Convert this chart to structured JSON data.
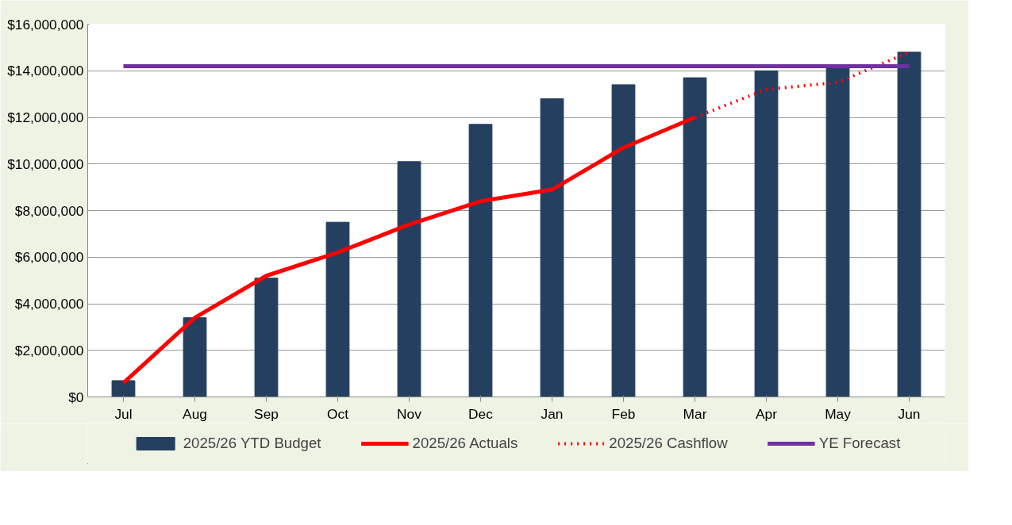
{
  "chart_data": {
    "type": "bar",
    "categories": [
      "Jul",
      "Aug",
      "Sep",
      "Oct",
      "Nov",
      "Dec",
      "Jan",
      "Feb",
      "Mar",
      "Apr",
      "May",
      "Jun"
    ],
    "ylim": [
      0,
      16000000
    ],
    "yticks": [
      {
        "value": 0,
        "label": "$0"
      },
      {
        "value": 2000000,
        "label": "$2,000,000"
      },
      {
        "value": 4000000,
        "label": "$4,000,000"
      },
      {
        "value": 6000000,
        "label": "$6,000,000"
      },
      {
        "value": 8000000,
        "label": "$8,000,000"
      },
      {
        "value": 10000000,
        "label": "$10,000,000"
      },
      {
        "value": 12000000,
        "label": "$12,000,000"
      },
      {
        "value": 14000000,
        "label": "$14,000,000"
      },
      {
        "value": 16000000,
        "label": "$16,000,000"
      }
    ],
    "grid": "y",
    "legend": "bottom",
    "marker": "none",
    "series": [
      {
        "name": "2025/26 YTD Budget",
        "color": "#243f60",
        "values": [
          700000,
          3400000,
          5100000,
          7500000,
          10100000,
          11700000,
          12800000,
          13400000,
          13700000,
          14000000,
          14200000,
          14800000
        ]
      },
      {
        "name": "2025/26 Actuals",
        "type": "line",
        "line_style": "solid",
        "color": "#ff0000",
        "values": [
          600000,
          3400000,
          5200000,
          6200000,
          7400000,
          8400000,
          8900000,
          10700000,
          12000000,
          null,
          null,
          null
        ]
      },
      {
        "name": "2025/26 Cashflow",
        "type": "line",
        "line_style": "dotted",
        "color": "#ff0000",
        "values": [
          null,
          null,
          null,
          null,
          null,
          null,
          null,
          null,
          12000000,
          13200000,
          13500000,
          14800000
        ]
      },
      {
        "name": "YE Forecast",
        "type": "line",
        "line_style": "solid",
        "color": "#7030a0",
        "values": [
          14200000,
          14200000,
          14200000,
          14200000,
          14200000,
          14200000,
          14200000,
          14200000,
          14200000,
          14200000,
          14200000,
          14200000
        ]
      }
    ]
  }
}
